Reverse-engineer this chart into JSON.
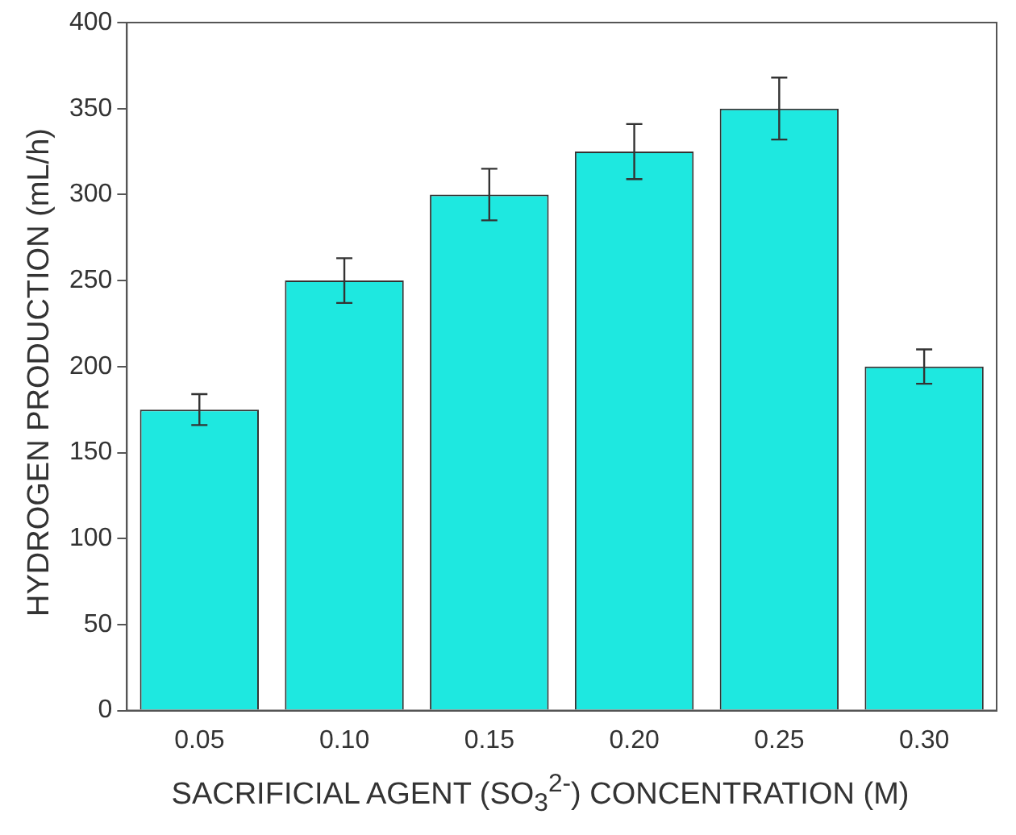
{
  "chart_data": {
    "type": "bar",
    "xlabel": "SACRIFICIAL AGENT (SO$_{3}$$^{2-}$) CONCENTRATION (M)",
    "ylabel": "HYDROGEN PRODUCTION (mL/h)",
    "categories": [
      "0.05",
      "0.10",
      "0.15",
      "0.20",
      "0.25",
      "0.30"
    ],
    "values": [
      175,
      250,
      300,
      325,
      350,
      200
    ],
    "errors": [
      9,
      13,
      15,
      16,
      18,
      10
    ],
    "color": "#1ee8e0",
    "ylim": [
      0,
      400
    ],
    "yticks": [
      0,
      50,
      100,
      150,
      200,
      250,
      300,
      350,
      400
    ],
    "grid": false,
    "legend": false
  }
}
